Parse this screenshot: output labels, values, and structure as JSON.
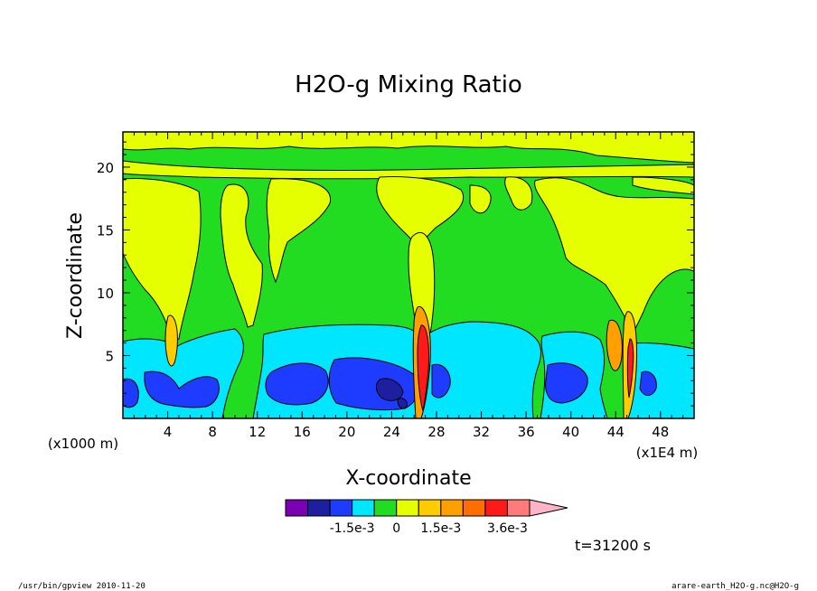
{
  "chart_data": {
    "type": "heatmap",
    "title": "H2O-g Mixing Ratio",
    "xlabel": "X-coordinate",
    "ylabel": "Z-coordinate",
    "x_units_note": "(x1000 m)",
    "x_scale_note": "(x1E4 m)",
    "x_ticks": [
      4,
      8,
      12,
      16,
      20,
      24,
      28,
      32,
      36,
      40,
      44,
      48
    ],
    "y_ticks": [
      5,
      10,
      15,
      20
    ],
    "xlim": [
      0,
      51
    ],
    "ylim": [
      0,
      22.8
    ],
    "colorbar": {
      "colors": [
        "#7b00b4",
        "#1e1ea0",
        "#1e3cff",
        "#00e6ff",
        "#22dc22",
        "#e6ff00",
        "#ffcc00",
        "#ffa000",
        "#ff6e00",
        "#ff1a1a",
        "#ff7a7a",
        "#ffb4c8"
      ],
      "tick_labels": [
        "-1.5e-3",
        "0",
        "1.5e-3",
        "3.6e-3"
      ],
      "extend": "max"
    },
    "time_label": "t=31200 s",
    "plot_colors": {
      "green": "#22dc22",
      "yellow": "#e6ff00",
      "cyan": "#00e6ff",
      "blue": "#1e3cff",
      "darkblue": "#1e1ea0",
      "orange": "#ffa000",
      "red": "#ff1a1a"
    }
  },
  "footer": {
    "left": "/usr/bin/gpview  2010-11-20",
    "right": "arare-earth_H2O-g.nc@H2O-g"
  }
}
